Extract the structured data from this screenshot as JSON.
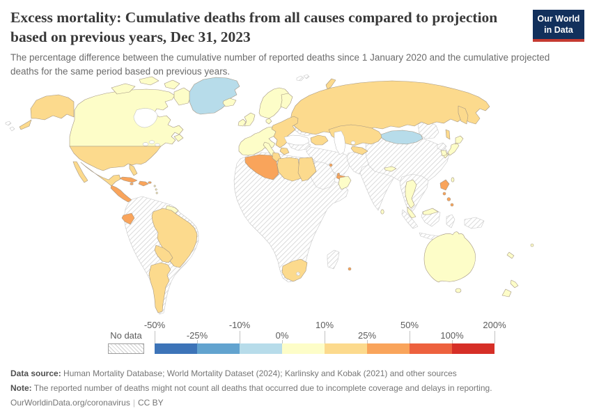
{
  "header": {
    "title": "Excess mortality: Cumulative deaths from all causes compared to projection based on previous years, Dec 31, 2023",
    "subtitle": "The percentage difference between the cumulative number of reported deaths since 1 January 2020 and the cumulative projected deaths for the same period based on previous years."
  },
  "logo": {
    "line1": "Our World",
    "line2": "in Data",
    "navy": "#12305c",
    "red": "#c53a31"
  },
  "chart_data": {
    "type": "heatmap",
    "subtype": "choropleth-world-map",
    "title": "Excess mortality: Cumulative deaths from all causes compared to projection based on previous years, Dec 31, 2023",
    "date": "Dec 31, 2023",
    "unit": "%",
    "legend": {
      "no_data_label": "No data",
      "tick_labels": [
        "-50%",
        "-25%",
        "-10%",
        "0%",
        "10%",
        "25%",
        "50%",
        "100%",
        "200%"
      ],
      "bins": [
        {
          "range": "-50--25",
          "label": "-50% to -25%",
          "color": "#3d74b8"
        },
        {
          "range": "-25--10",
          "label": "-25% to -10%",
          "color": "#62a3cf"
        },
        {
          "range": "-10-0",
          "label": "-10% to 0%",
          "color": "#b7dcea"
        },
        {
          "range": "0-10",
          "label": "0% to 10%",
          "color": "#fdfdc8"
        },
        {
          "range": "10-25",
          "label": "10% to 25%",
          "color": "#fcda8d"
        },
        {
          "range": "25-50",
          "label": "25% to 50%",
          "color": "#f9a45b"
        },
        {
          "range": "50-100",
          "label": "50% to 100%",
          "color": "#ed613e"
        },
        {
          "range": "100-200",
          "label": "100% to 200%",
          "color": "#d62f27"
        }
      ]
    },
    "regions": {
      "greenland": "-10-0",
      "mongolia": "-10-0",
      "canada": "0-10",
      "iceland": "0-10",
      "western-europe": "0-10",
      "uk": "0-10",
      "ireland": "0-10",
      "scandinavia": "0-10",
      "finland": "0-10",
      "denmark": "0-10",
      "italy": "0-10",
      "oman": "0-10",
      "nepal": "0-10",
      "sri-lanka": "0-10",
      "thailand": "0-10",
      "malaysia": "0-10",
      "east-malaysia": "0-10",
      "taiwan": "0-10",
      "japan": "0-10",
      "south-korea": "0-10",
      "australia": "0-10",
      "new-zealand": "0-10",
      "new-caledonia": "0-10",
      "fiji": "0-10",
      "guyana": "0-10",
      "lesser-antilles": "0-10",
      "usa": "10-25",
      "mexico": "10-25",
      "brazil": "10-25",
      "bolivia-paraguay": "10-25",
      "argentina-chile": "10-25",
      "russia": "10-25",
      "kazakhstan": "10-25",
      "uzbekistan": "10-25",
      "caucasus": "10-25",
      "eastern-europe": "10-25",
      "greece": "10-25",
      "israel-jordan": "10-25",
      "libya": "10-25",
      "tunisia": "10-25",
      "egypt": "10-25",
      "south-africa": "10-25",
      "algeria": "25-50",
      "cuba": "25-50",
      "hispaniola": "25-50",
      "jamaica": "25-50",
      "puerto-rico": "25-50",
      "central-america": "25-50",
      "ecuador": "25-50",
      "philippines": "25-50",
      "kuwait": "25-50",
      "qatar": "25-50",
      "uae": "25-50",
      "mauritius": "25-50",
      "colombia-venezuela-peru": "no-data",
      "africa": "no-data",
      "madagascar": "no-data",
      "lesotho": "no-data",
      "ukraine": "no-data",
      "turkey": "no-data",
      "middle-east": "no-data",
      "arabia": "no-data",
      "pakistan-afghanistan": "no-data",
      "india": "no-data",
      "china": "no-data",
      "indochina": "no-data",
      "north-korea": "no-data",
      "indonesia": "no-data",
      "new-guinea": "no-data",
      "svalbard": "no-data",
      "aleutian-islands": "no-data"
    }
  },
  "footer": {
    "source_label": "Data source:",
    "source_text": "Human Mortality Database; World Mortality Dataset (2024); Karlinsky and Kobak (2021) and other sources",
    "note_label": "Note:",
    "note_text": "The reported number of deaths might not count all deaths that occurred due to incomplete coverage and delays in reporting.",
    "link": "OurWorldinData.org/coronavirus",
    "separator": "|",
    "license": "CC BY"
  }
}
